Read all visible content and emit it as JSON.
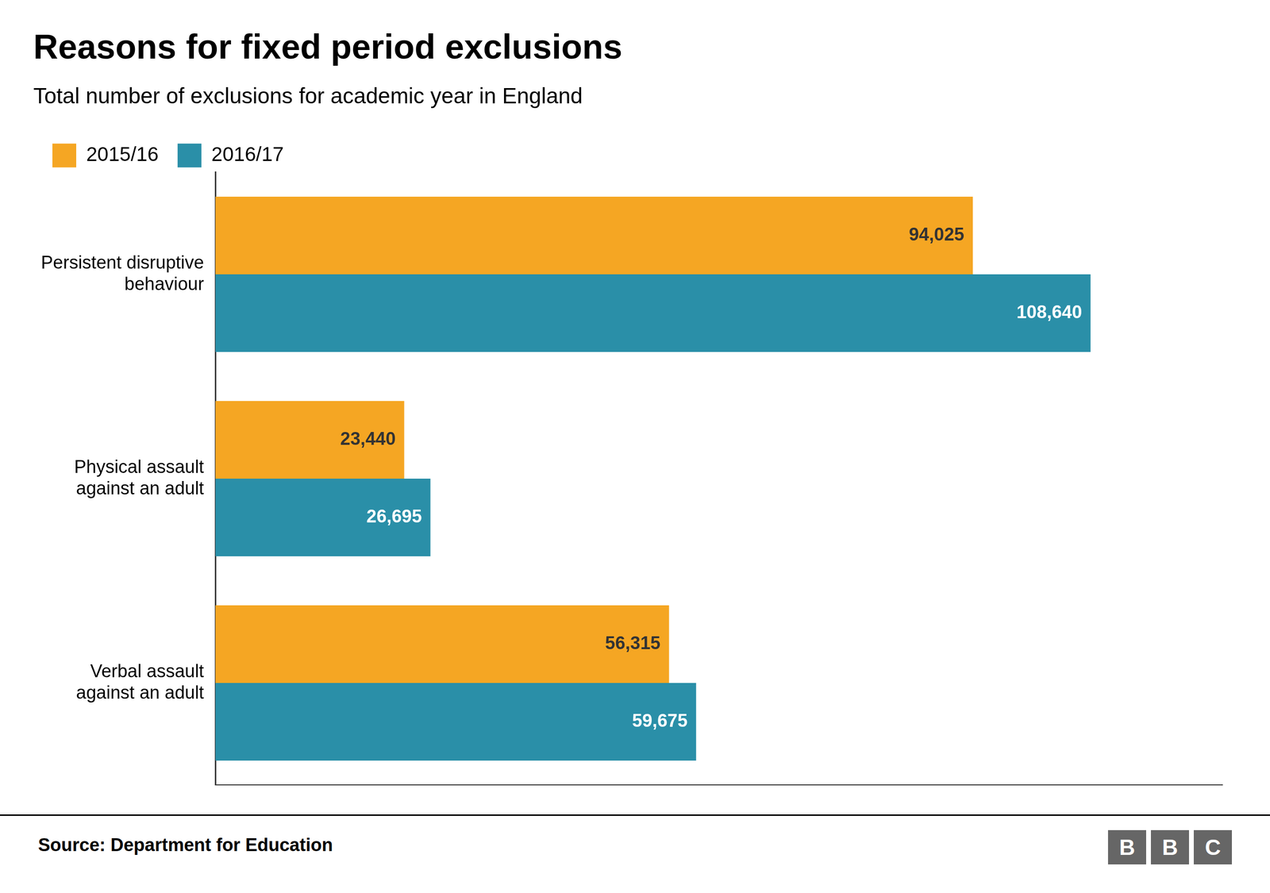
{
  "chart_data": {
    "type": "bar",
    "orientation": "horizontal",
    "title": "Reasons for fixed period exclusions",
    "subtitle": "Total number of exclusions for academic year in England",
    "source": "Source: Department for Education",
    "logo": "BBC",
    "categories": [
      "Persistent disruptive\nbehaviour",
      "Physical assault\nagainst an adult",
      "Verbal assault\nagainst an adult"
    ],
    "series": [
      {
        "name": "2015/16",
        "color": "#F5A623",
        "values": [
          94025,
          23440,
          56315
        ],
        "value_labels": [
          "94,025",
          "23,440",
          "56,315"
        ]
      },
      {
        "name": "2016/17",
        "color": "#2A8FA8",
        "values": [
          108640,
          26695,
          59675
        ],
        "value_labels": [
          "108,640",
          "26,695",
          "59,675"
        ]
      }
    ],
    "xlim": [
      0,
      125000
    ],
    "grid": false,
    "legend": "top",
    "data_labels": true,
    "tick_labels": "y"
  }
}
